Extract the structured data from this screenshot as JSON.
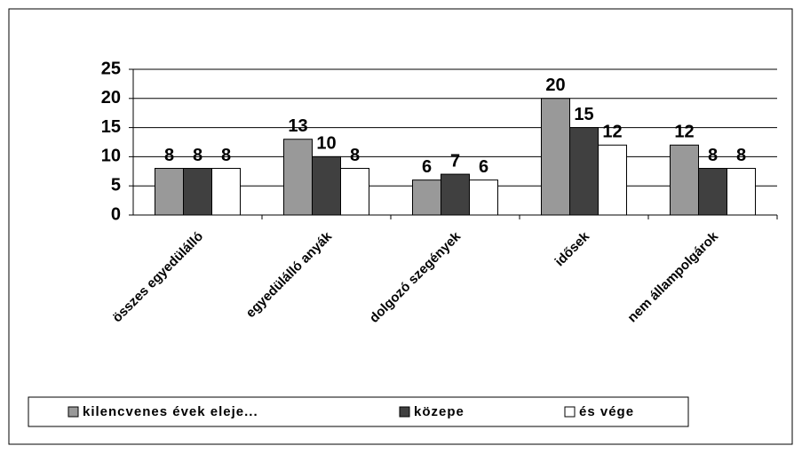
{
  "chart_data": {
    "type": "bar",
    "categories": [
      "összes egyedülálló",
      "egyedülálló anyák",
      "dolgozó szegények",
      "idősek",
      "nem állampolgárok"
    ],
    "series": [
      {
        "name": "kilencvenes évek eleje...",
        "color": "#999999",
        "values": [
          8,
          13,
          6,
          20,
          12
        ]
      },
      {
        "name": "közepe",
        "color": "#404040",
        "values": [
          8,
          10,
          7,
          15,
          8
        ]
      },
      {
        "name": "és vége",
        "color": "#ffffff",
        "values": [
          8,
          8,
          6,
          12,
          8
        ]
      }
    ],
    "ylim": [
      0,
      25
    ],
    "yticks": [
      0,
      5,
      10,
      15,
      20,
      25
    ],
    "grid": true,
    "legend": "bottom"
  }
}
